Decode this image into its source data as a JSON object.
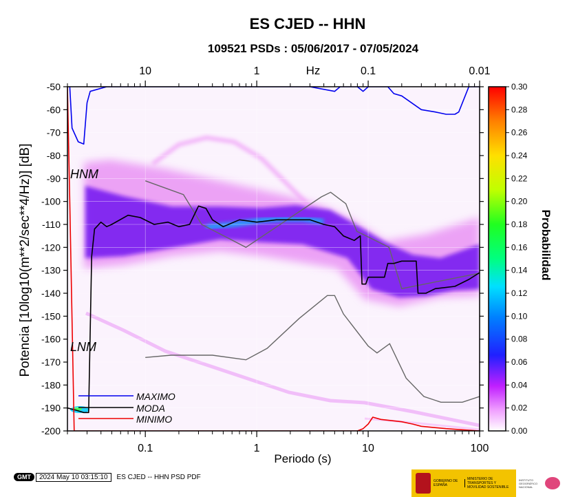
{
  "title": "ES CJED -- HHN",
  "subtitle": "109521 PSDs : 05/06/2017 - 07/05/2024",
  "chart_data": {
    "type": "heatmap",
    "xlabel": "Periodo (s)",
    "ylabel": "Potencia [10log10(m**2/sec**4/Hz)] [dB]",
    "x_scale": "log",
    "xlim": [
      0.02,
      100
    ],
    "ylim": [
      -200,
      -50
    ],
    "x_ticks": [
      "0.1",
      "1",
      "10",
      "100"
    ],
    "y_ticks": [
      "-50",
      "-60",
      "-70",
      "-80",
      "-90",
      "-100",
      "-110",
      "-120",
      "-130",
      "-140",
      "-150",
      "-160",
      "-170",
      "-180",
      "-190",
      "-200"
    ],
    "top_axis_label": "Hz",
    "top_ticks": [
      "10",
      "1",
      "0.1",
      "0.01"
    ],
    "colorbar": {
      "label": "Probabilidad",
      "range": [
        0,
        0.3
      ],
      "ticks": [
        "0.00",
        "0.02",
        "0.04",
        "0.06",
        "0.08",
        "0.10",
        "0.12",
        "0.14",
        "0.16",
        "0.18",
        "0.20",
        "0.22",
        "0.24",
        "0.26",
        "0.28",
        "0.30"
      ]
    },
    "noise_models": [
      {
        "name": "HNM",
        "color": "#666666",
        "points": [
          [
            0.1,
            -91
          ],
          [
            0.22,
            -97
          ],
          [
            0.32,
            -110
          ],
          [
            0.8,
            -120
          ],
          [
            3.8,
            -98
          ],
          [
            4.6,
            -96
          ],
          [
            6.3,
            -101
          ],
          [
            7.9,
            -113
          ],
          [
            15.4,
            -120
          ],
          [
            20,
            -138
          ],
          [
            354,
            -126
          ]
        ]
      },
      {
        "name": "LNM",
        "color": "#666666",
        "points": [
          [
            0.1,
            -168
          ],
          [
            0.17,
            -167
          ],
          [
            0.4,
            -167
          ],
          [
            0.8,
            -169
          ],
          [
            1.24,
            -164
          ],
          [
            2.4,
            -151
          ],
          [
            4.3,
            -141
          ],
          [
            5,
            -141
          ],
          [
            6,
            -149
          ],
          [
            10,
            -163
          ],
          [
            12,
            -166
          ],
          [
            15.6,
            -162
          ],
          [
            21.9,
            -177
          ],
          [
            31.6,
            -185
          ],
          [
            45,
            -187.5
          ],
          [
            70,
            -187.5
          ],
          [
            100,
            -185
          ]
        ]
      }
    ],
    "series": [
      {
        "name": "MAXIMO",
        "color": "#0000ee",
        "points": [
          [
            0.021,
            -50
          ],
          [
            0.022,
            -68
          ],
          [
            0.025,
            -74
          ],
          [
            0.028,
            -75
          ],
          [
            0.03,
            -57
          ],
          [
            0.032,
            -52
          ],
          [
            0.045,
            -50
          ],
          [
            1.0,
            -50
          ],
          [
            3,
            -50
          ],
          [
            5,
            -52
          ],
          [
            5.6,
            -50
          ],
          [
            8,
            -50
          ],
          [
            9,
            -52
          ],
          [
            10,
            -50
          ],
          [
            15,
            -50
          ],
          [
            17,
            -53
          ],
          [
            20,
            -54
          ],
          [
            30,
            -60
          ],
          [
            40,
            -61
          ],
          [
            50,
            -62
          ],
          [
            60,
            -62
          ],
          [
            65,
            -61
          ],
          [
            80,
            -50
          ],
          [
            100,
            -50
          ]
        ]
      },
      {
        "name": "MODA",
        "color": "#000000",
        "points": [
          [
            0.02,
            -190
          ],
          [
            0.024,
            -191
          ],
          [
            0.028,
            -192
          ],
          [
            0.031,
            -192
          ],
          [
            0.033,
            -124
          ],
          [
            0.035,
            -112
          ],
          [
            0.04,
            -109
          ],
          [
            0.045,
            -111
          ],
          [
            0.05,
            -110
          ],
          [
            0.07,
            -106
          ],
          [
            0.09,
            -107
          ],
          [
            0.12,
            -110
          ],
          [
            0.16,
            -109
          ],
          [
            0.2,
            -111
          ],
          [
            0.25,
            -110
          ],
          [
            0.3,
            -102
          ],
          [
            0.35,
            -103
          ],
          [
            0.4,
            -108
          ],
          [
            0.5,
            -111
          ],
          [
            0.7,
            -108
          ],
          [
            1,
            -109
          ],
          [
            1.5,
            -108
          ],
          [
            3,
            -108
          ],
          [
            4,
            -110
          ],
          [
            5,
            -111
          ],
          [
            6,
            -115
          ],
          [
            7.5,
            -117
          ],
          [
            8.5,
            -115
          ],
          [
            8.8,
            -136
          ],
          [
            9.5,
            -136
          ],
          [
            10,
            -133
          ],
          [
            12,
            -133
          ],
          [
            14,
            -133
          ],
          [
            15,
            -127
          ],
          [
            17,
            -127
          ],
          [
            20,
            -126
          ],
          [
            27,
            -126
          ],
          [
            28,
            -140
          ],
          [
            33,
            -140
          ],
          [
            40,
            -138
          ],
          [
            60,
            -137
          ],
          [
            80,
            -134
          ],
          [
            100,
            -131
          ]
        ]
      },
      {
        "name": "MINIMO",
        "color": "#ee0000",
        "points": [
          [
            0.02,
            -50
          ],
          [
            0.021,
            -100
          ],
          [
            0.023,
            -200
          ],
          [
            0.04,
            -200
          ],
          [
            0.05,
            -200
          ],
          [
            1,
            -200
          ],
          [
            5,
            -200
          ],
          [
            8,
            -200
          ],
          [
            9,
            -199
          ],
          [
            10,
            -197
          ],
          [
            11,
            -194
          ],
          [
            13,
            -195
          ],
          [
            20,
            -196
          ],
          [
            25,
            -197
          ],
          [
            30,
            -198
          ],
          [
            50,
            -199
          ],
          [
            100,
            -200
          ]
        ]
      }
    ],
    "legend": [
      "MAXIMO",
      "MODA",
      "MINIMO"
    ],
    "annotations": [
      "HNM",
      "LNM"
    ]
  },
  "footer": {
    "gmt_logo": "GMT",
    "timestamp": "2024 May 10 03:15:10",
    "caption": "ES CJED -- HHN PSD PDF"
  },
  "banner": {
    "gov_text": "GOBIERNO DE ESPAÑA",
    "ministry_text": "MINISTERIO DE TRANSPORTES Y MOVILIDAD SOSTENIBLE",
    "institute_text": "INSTITUTO GEOGRÁFICO NACIONAL",
    "colors": {
      "gov": "#f3c300",
      "crest": "#b3121c",
      "ign": "#e0457b"
    }
  }
}
